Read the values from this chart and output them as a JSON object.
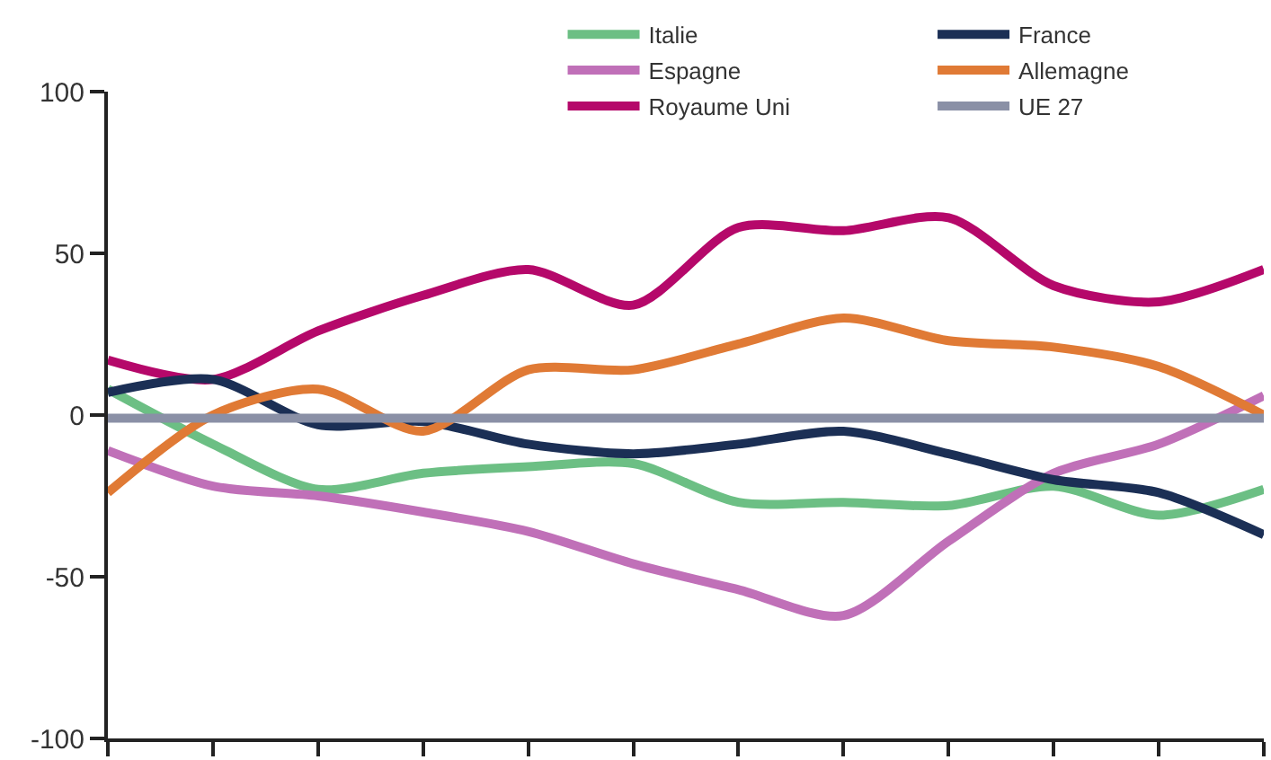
{
  "chart_data": {
    "type": "line",
    "categories": [
      null,
      null,
      null,
      null,
      null,
      null,
      null,
      null,
      null,
      null,
      null,
      null
    ],
    "series": [
      {
        "name": "Italie",
        "color": "#6cbf84",
        "values": [
          8,
          -9,
          -23,
          -18,
          -16,
          -15,
          -27,
          -27,
          -28,
          -22,
          -31,
          -23
        ]
      },
      {
        "name": "Espagne",
        "color": "#c070b8",
        "values": [
          -11,
          -22,
          -25,
          -30,
          -36,
          -46,
          -54,
          -62,
          -39,
          -18,
          -9,
          6
        ]
      },
      {
        "name": "Royaume Uni",
        "color": "#b5086a",
        "values": [
          17,
          11,
          26,
          37,
          45,
          34,
          58,
          57,
          61,
          40,
          35,
          45
        ]
      },
      {
        "name": "France",
        "color": "#1b2f55",
        "values": [
          7,
          11,
          -3,
          -2,
          -9,
          -12,
          -9,
          -5,
          -12,
          -20,
          -24,
          -37
        ]
      },
      {
        "name": "Allemagne",
        "color": "#e07a35",
        "values": [
          -24,
          0,
          8,
          -5,
          14,
          14,
          22,
          30,
          23,
          21,
          15,
          0
        ]
      },
      {
        "name": "UE 27",
        "color": "#8a90a6",
        "values": [
          -1,
          -1,
          -1,
          -1,
          -1,
          -1,
          -1,
          -1,
          -1,
          -1,
          -1,
          -1
        ]
      }
    ],
    "ylim": [
      -100,
      100
    ],
    "yticks": [
      -100,
      -50,
      0,
      50,
      100
    ],
    "tick_labels": "y",
    "legend": "top right",
    "marker": "none",
    "line_style": "solid"
  }
}
